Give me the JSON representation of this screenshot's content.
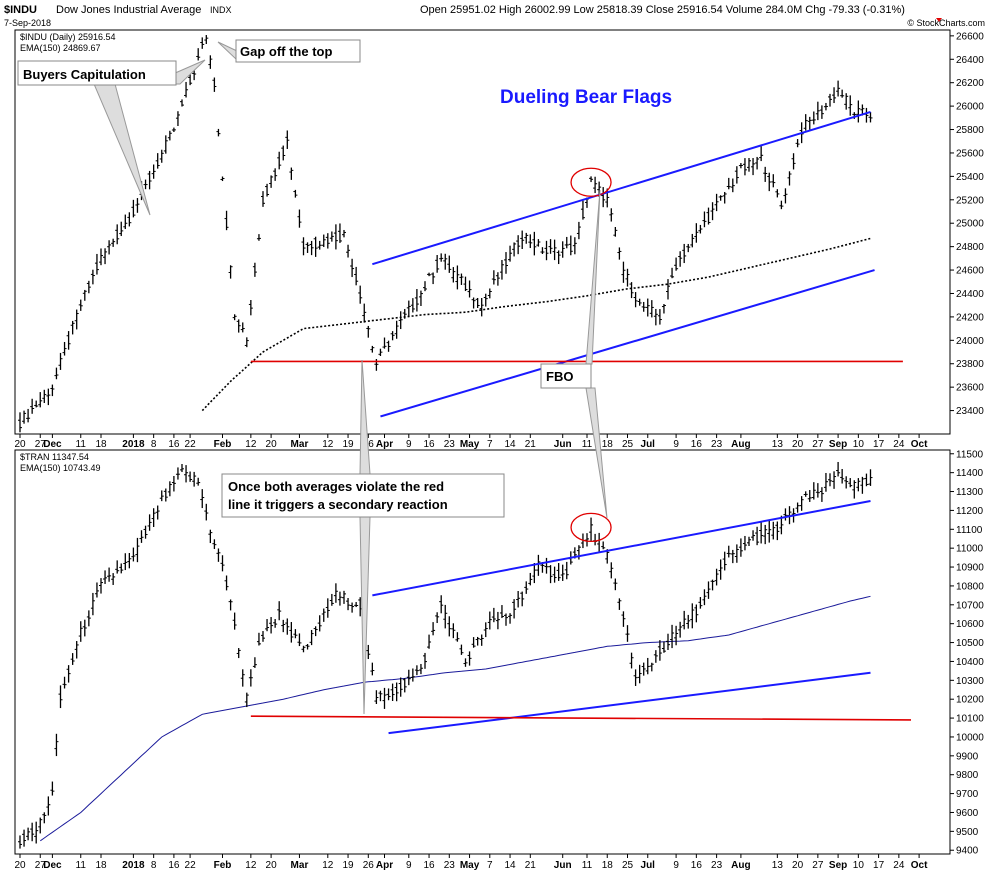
{
  "header": {
    "symbol": "$INDU",
    "name": "Dow Jones Industrial Average",
    "exchange": "INDX",
    "date": "7-Sep-2018",
    "ohlc_text": "Open 25951.02  High 26002.99  Low 25818.39  Close 25916.54  Volume 284.0M  Chg -79.33 (-0.31%)",
    "watermark": "© StockCharts.com"
  },
  "colors": {
    "trendline": "#1a1aff",
    "support": "#e00000",
    "ema_top": "#000000",
    "ema_bottom": "#1a1a9a",
    "bars": "#000000",
    "title": "#1a1aff",
    "circle": "#e00000"
  },
  "annotations": {
    "title": "Dueling Bear Flags",
    "buyers_capitulation": "Buyers Capitulation",
    "gap": "Gap off the top",
    "fbo": "FBO",
    "note_line1": "Once both averages violate the red",
    "note_line2": "line it triggers a secondary reaction"
  },
  "x_axis": {
    "labels": [
      {
        "text": "20",
        "bold": false,
        "i": 0
      },
      {
        "text": "27",
        "bold": false,
        "i": 5
      },
      {
        "text": "Dec",
        "bold": true,
        "i": 8
      },
      {
        "text": "11",
        "bold": false,
        "i": 15
      },
      {
        "text": "18",
        "bold": false,
        "i": 20
      },
      {
        "text": "2018",
        "bold": true,
        "i": 28
      },
      {
        "text": "8",
        "bold": false,
        "i": 33
      },
      {
        "text": "16",
        "bold": false,
        "i": 38
      },
      {
        "text": "22",
        "bold": false,
        "i": 42
      },
      {
        "text": "Feb",
        "bold": true,
        "i": 50
      },
      {
        "text": "12",
        "bold": false,
        "i": 57
      },
      {
        "text": "20",
        "bold": false,
        "i": 62
      },
      {
        "text": "Mar",
        "bold": true,
        "i": 69
      },
      {
        "text": "12",
        "bold": false,
        "i": 76
      },
      {
        "text": "19",
        "bold": false,
        "i": 81
      },
      {
        "text": "26",
        "bold": false,
        "i": 86
      },
      {
        "text": "Apr",
        "bold": true,
        "i": 90
      },
      {
        "text": "9",
        "bold": false,
        "i": 96
      },
      {
        "text": "16",
        "bold": false,
        "i": 101
      },
      {
        "text": "23",
        "bold": false,
        "i": 106
      },
      {
        "text": "May",
        "bold": true,
        "i": 111
      },
      {
        "text": "7",
        "bold": false,
        "i": 116
      },
      {
        "text": "14",
        "bold": false,
        "i": 121
      },
      {
        "text": "21",
        "bold": false,
        "i": 126
      },
      {
        "text": "Jun",
        "bold": true,
        "i": 134
      },
      {
        "text": "11",
        "bold": false,
        "i": 140
      },
      {
        "text": "18",
        "bold": false,
        "i": 145
      },
      {
        "text": "25",
        "bold": false,
        "i": 150
      },
      {
        "text": "Jul",
        "bold": true,
        "i": 155
      },
      {
        "text": "9",
        "bold": false,
        "i": 162
      },
      {
        "text": "16",
        "bold": false,
        "i": 167
      },
      {
        "text": "23",
        "bold": false,
        "i": 172
      },
      {
        "text": "Aug",
        "bold": true,
        "i": 178
      },
      {
        "text": "13",
        "bold": false,
        "i": 187
      },
      {
        "text": "20",
        "bold": false,
        "i": 192
      },
      {
        "text": "27",
        "bold": false,
        "i": 197
      },
      {
        "text": "Sep",
        "bold": true,
        "i": 202
      },
      {
        "text": "10",
        "bold": false,
        "i": 207
      },
      {
        "text": "17",
        "bold": false,
        "i": 212
      },
      {
        "text": "24",
        "bold": false,
        "i": 217
      },
      {
        "text": "Oct",
        "bold": true,
        "i": 222
      }
    ]
  },
  "chart_data": [
    {
      "type": "line",
      "panel": "top",
      "legend_price": "$INDU (Daily) 25916.54",
      "legend_ema": "EMA(150) 24869.67",
      "ylim": [
        23200,
        26650
      ],
      "yticks": [
        23400,
        23600,
        23800,
        24000,
        24200,
        24400,
        24600,
        24800,
        25000,
        25200,
        25400,
        25600,
        25800,
        26000,
        26200,
        26400,
        26600
      ],
      "key_points": [
        [
          0,
          23300
        ],
        [
          8,
          23600
        ],
        [
          15,
          24300
        ],
        [
          20,
          24700
        ],
        [
          28,
          25100
        ],
        [
          38,
          25800
        ],
        [
          46,
          26600
        ],
        [
          48,
          26200
        ],
        [
          50,
          25400
        ],
        [
          53,
          24200
        ],
        [
          56,
          24000
        ],
        [
          60,
          25200
        ],
        [
          66,
          25700
        ],
        [
          70,
          24800
        ],
        [
          80,
          24900
        ],
        [
          84,
          24400
        ],
        [
          88,
          23800
        ],
        [
          93,
          24100
        ],
        [
          99,
          24400
        ],
        [
          104,
          24700
        ],
        [
          109,
          24500
        ],
        [
          114,
          24300
        ],
        [
          119,
          24600
        ],
        [
          124,
          24900
        ],
        [
          130,
          24750
        ],
        [
          137,
          24800
        ],
        [
          141,
          25350
        ],
        [
          145,
          25200
        ],
        [
          149,
          24600
        ],
        [
          153,
          24300
        ],
        [
          158,
          24200
        ],
        [
          162,
          24650
        ],
        [
          168,
          24950
        ],
        [
          174,
          25250
        ],
        [
          178,
          25450
        ],
        [
          183,
          25550
        ],
        [
          188,
          25150
        ],
        [
          193,
          25800
        ],
        [
          199,
          26000
        ],
        [
          202,
          26150
        ],
        [
          206,
          25950
        ],
        [
          210,
          25920
        ]
      ],
      "ema_key_points": [
        [
          45,
          23400
        ],
        [
          52,
          23650
        ],
        [
          60,
          23900
        ],
        [
          70,
          24100
        ],
        [
          80,
          24140
        ],
        [
          90,
          24180
        ],
        [
          100,
          24220
        ],
        [
          110,
          24240
        ],
        [
          120,
          24290
        ],
        [
          130,
          24330
        ],
        [
          140,
          24380
        ],
        [
          150,
          24440
        ],
        [
          160,
          24480
        ],
        [
          170,
          24540
        ],
        [
          180,
          24620
        ],
        [
          190,
          24700
        ],
        [
          200,
          24780
        ],
        [
          210,
          24870
        ]
      ],
      "upper_trendline": [
        [
          87,
          24650
        ],
        [
          210,
          25950
        ]
      ],
      "lower_trendline": [
        [
          89,
          23350
        ],
        [
          211,
          24600
        ]
      ],
      "support_line": [
        [
          57,
          23820
        ],
        [
          218,
          23820
        ]
      ],
      "circle_at": [
        141,
        25350
      ]
    },
    {
      "type": "line",
      "panel": "bottom",
      "legend_price": "$TRAN 11347.54",
      "legend_ema": "EMA(150) 10743.49",
      "ylim": [
        9380,
        11520
      ],
      "yticks": [
        9400,
        9500,
        9600,
        9700,
        9800,
        9900,
        10000,
        10100,
        10200,
        10300,
        10400,
        10500,
        10600,
        10700,
        10800,
        10900,
        11000,
        11100,
        11200,
        11300,
        11400,
        11500
      ],
      "key_points": [
        [
          0,
          9450
        ],
        [
          4,
          9500
        ],
        [
          8,
          9700
        ],
        [
          10,
          10200
        ],
        [
          15,
          10550
        ],
        [
          20,
          10800
        ],
        [
          28,
          10950
        ],
        [
          35,
          11250
        ],
        [
          40,
          11400
        ],
        [
          44,
          11350
        ],
        [
          47,
          11100
        ],
        [
          50,
          10900
        ],
        [
          53,
          10600
        ],
        [
          56,
          10200
        ],
        [
          59,
          10500
        ],
        [
          64,
          10650
        ],
        [
          70,
          10450
        ],
        [
          78,
          10750
        ],
        [
          84,
          10700
        ],
        [
          88,
          10200
        ],
        [
          93,
          10250
        ],
        [
          99,
          10350
        ],
        [
          104,
          10700
        ],
        [
          110,
          10400
        ],
        [
          116,
          10600
        ],
        [
          121,
          10650
        ],
        [
          128,
          10900
        ],
        [
          134,
          10850
        ],
        [
          141,
          11100
        ],
        [
          145,
          10950
        ],
        [
          149,
          10650
        ],
        [
          152,
          10300
        ],
        [
          156,
          10400
        ],
        [
          162,
          10550
        ],
        [
          168,
          10700
        ],
        [
          175,
          10950
        ],
        [
          181,
          11050
        ],
        [
          187,
          11100
        ],
        [
          193,
          11250
        ],
        [
          198,
          11300
        ],
        [
          202,
          11400
        ],
        [
          206,
          11330
        ],
        [
          210,
          11350
        ]
      ],
      "ema_key_points": [
        [
          5,
          9450
        ],
        [
          15,
          9600
        ],
        [
          25,
          9800
        ],
        [
          35,
          10000
        ],
        [
          45,
          10120
        ],
        [
          55,
          10160
        ],
        [
          65,
          10200
        ],
        [
          75,
          10250
        ],
        [
          85,
          10290
        ],
        [
          95,
          10310
        ],
        [
          105,
          10340
        ],
        [
          115,
          10360
        ],
        [
          125,
          10400
        ],
        [
          135,
          10440
        ],
        [
          145,
          10480
        ],
        [
          155,
          10500
        ],
        [
          165,
          10510
        ],
        [
          175,
          10540
        ],
        [
          185,
          10600
        ],
        [
          195,
          10660
        ],
        [
          205,
          10720
        ],
        [
          210,
          10745
        ]
      ],
      "upper_trendline": [
        [
          87,
          10750
        ],
        [
          210,
          11250
        ]
      ],
      "lower_trendline": [
        [
          91,
          10020
        ],
        [
          210,
          10340
        ]
      ],
      "support_line": [
        [
          57,
          10110
        ],
        [
          220,
          10090
        ]
      ],
      "circle_at": [
        141,
        11110
      ]
    }
  ]
}
